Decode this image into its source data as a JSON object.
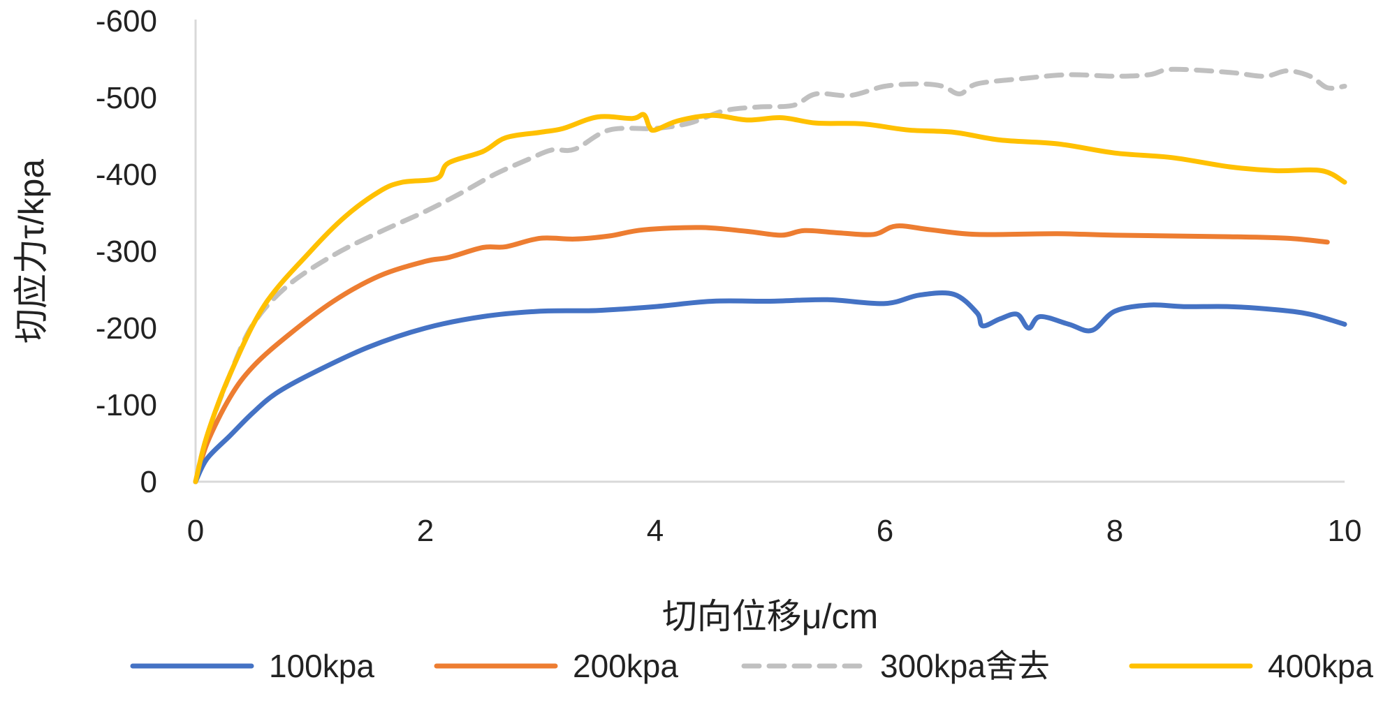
{
  "chart_data": {
    "type": "line",
    "title": "",
    "xlabel": "切向位移μ/cm",
    "ylabel": "切应力τ/kpa",
    "xlim": [
      0,
      10
    ],
    "ylim": [
      0,
      -600
    ],
    "x_ticks": [
      {
        "value": 0,
        "label": "0"
      },
      {
        "value": 2,
        "label": "2"
      },
      {
        "value": 4,
        "label": "4"
      },
      {
        "value": 6,
        "label": "6"
      },
      {
        "value": 8,
        "label": "8"
      },
      {
        "value": 10,
        "label": "10"
      }
    ],
    "y_ticks": [
      {
        "value": 0,
        "label": "0"
      },
      {
        "value": -100,
        "label": "-100"
      },
      {
        "value": -200,
        "label": "-200"
      },
      {
        "value": -300,
        "label": "-300"
      },
      {
        "value": -400,
        "label": "-400"
      },
      {
        "value": -500,
        "label": "-500"
      },
      {
        "value": -600,
        "label": "-600"
      }
    ],
    "grid": false,
    "legend_position": "bottom",
    "series": [
      {
        "name": "100kpa",
        "color": "#4472C4",
        "dashed": false,
        "points": [
          [
            0,
            0
          ],
          [
            0.1,
            -30
          ],
          [
            0.3,
            -60
          ],
          [
            0.5,
            -90
          ],
          [
            0.7,
            -115
          ],
          [
            1,
            -140
          ],
          [
            1.5,
            -175
          ],
          [
            2,
            -200
          ],
          [
            2.5,
            -215
          ],
          [
            3,
            -222
          ],
          [
            3.5,
            -223
          ],
          [
            4,
            -228
          ],
          [
            4.5,
            -235
          ],
          [
            5,
            -235
          ],
          [
            5.5,
            -237
          ],
          [
            6,
            -232
          ],
          [
            6.3,
            -243
          ],
          [
            6.6,
            -244
          ],
          [
            6.8,
            -220
          ],
          [
            6.85,
            -203
          ],
          [
            7,
            -212
          ],
          [
            7.15,
            -218
          ],
          [
            7.25,
            -200
          ],
          [
            7.35,
            -215
          ],
          [
            7.6,
            -205
          ],
          [
            7.8,
            -197
          ],
          [
            8,
            -222
          ],
          [
            8.3,
            -230
          ],
          [
            8.6,
            -228
          ],
          [
            9,
            -228
          ],
          [
            9.4,
            -224
          ],
          [
            9.7,
            -218
          ],
          [
            10,
            -205
          ]
        ]
      },
      {
        "name": "200kpa",
        "color": "#ED7D31",
        "dashed": false,
        "points": [
          [
            0,
            0
          ],
          [
            0.1,
            -50
          ],
          [
            0.3,
            -110
          ],
          [
            0.5,
            -150
          ],
          [
            0.8,
            -190
          ],
          [
            1.2,
            -235
          ],
          [
            1.6,
            -268
          ],
          [
            2,
            -287
          ],
          [
            2.2,
            -292
          ],
          [
            2.5,
            -305
          ],
          [
            2.7,
            -306
          ],
          [
            3,
            -317
          ],
          [
            3.3,
            -316
          ],
          [
            3.6,
            -320
          ],
          [
            3.9,
            -328
          ],
          [
            4.4,
            -331
          ],
          [
            4.8,
            -326
          ],
          [
            5.1,
            -321
          ],
          [
            5.3,
            -327
          ],
          [
            5.6,
            -324
          ],
          [
            5.9,
            -322
          ],
          [
            6.1,
            -333
          ],
          [
            6.4,
            -328
          ],
          [
            6.8,
            -322
          ],
          [
            7.5,
            -323
          ],
          [
            8,
            -321
          ],
          [
            9,
            -319
          ],
          [
            9.5,
            -317
          ],
          [
            9.85,
            -312
          ]
        ]
      },
      {
        "name": "300kpa舍去",
        "color": "#C0C0C0",
        "dashed": true,
        "points": [
          [
            0,
            0
          ],
          [
            0.1,
            -60
          ],
          [
            0.3,
            -140
          ],
          [
            0.5,
            -205
          ],
          [
            0.8,
            -255
          ],
          [
            1.2,
            -295
          ],
          [
            1.6,
            -325
          ],
          [
            2,
            -352
          ],
          [
            2.3,
            -375
          ],
          [
            2.6,
            -400
          ],
          [
            2.9,
            -420
          ],
          [
            3.1,
            -432
          ],
          [
            3.3,
            -433
          ],
          [
            3.6,
            -458
          ],
          [
            4,
            -460
          ],
          [
            4.3,
            -467
          ],
          [
            4.6,
            -483
          ],
          [
            4.9,
            -488
          ],
          [
            5.2,
            -490
          ],
          [
            5.4,
            -505
          ],
          [
            5.7,
            -503
          ],
          [
            6,
            -515
          ],
          [
            6.3,
            -518
          ],
          [
            6.5,
            -515
          ],
          [
            6.65,
            -505
          ],
          [
            6.8,
            -518
          ],
          [
            7.2,
            -525
          ],
          [
            7.6,
            -530
          ],
          [
            8,
            -528
          ],
          [
            8.3,
            -530
          ],
          [
            8.5,
            -537
          ],
          [
            9,
            -533
          ],
          [
            9.3,
            -528
          ],
          [
            9.5,
            -535
          ],
          [
            9.7,
            -528
          ],
          [
            9.85,
            -513
          ],
          [
            10,
            -515
          ]
        ]
      },
      {
        "name": "400kpa",
        "color": "#FFC000",
        "dashed": false,
        "points": [
          [
            0,
            0
          ],
          [
            0.1,
            -60
          ],
          [
            0.3,
            -140
          ],
          [
            0.6,
            -230
          ],
          [
            1,
            -300
          ],
          [
            1.3,
            -345
          ],
          [
            1.6,
            -378
          ],
          [
            1.8,
            -390
          ],
          [
            2.1,
            -395
          ],
          [
            2.2,
            -415
          ],
          [
            2.5,
            -430
          ],
          [
            2.7,
            -448
          ],
          [
            3,
            -455
          ],
          [
            3.2,
            -460
          ],
          [
            3.5,
            -475
          ],
          [
            3.8,
            -473
          ],
          [
            3.9,
            -478
          ],
          [
            3.95,
            -462
          ],
          [
            4,
            -458
          ],
          [
            4.2,
            -470
          ],
          [
            4.5,
            -477
          ],
          [
            4.8,
            -471
          ],
          [
            5.1,
            -474
          ],
          [
            5.4,
            -467
          ],
          [
            5.8,
            -466
          ],
          [
            6.2,
            -458
          ],
          [
            6.6,
            -455
          ],
          [
            7,
            -445
          ],
          [
            7.5,
            -440
          ],
          [
            8,
            -428
          ],
          [
            8.5,
            -422
          ],
          [
            9,
            -410
          ],
          [
            9.4,
            -405
          ],
          [
            9.8,
            -405
          ],
          [
            10,
            -390
          ]
        ]
      }
    ]
  }
}
